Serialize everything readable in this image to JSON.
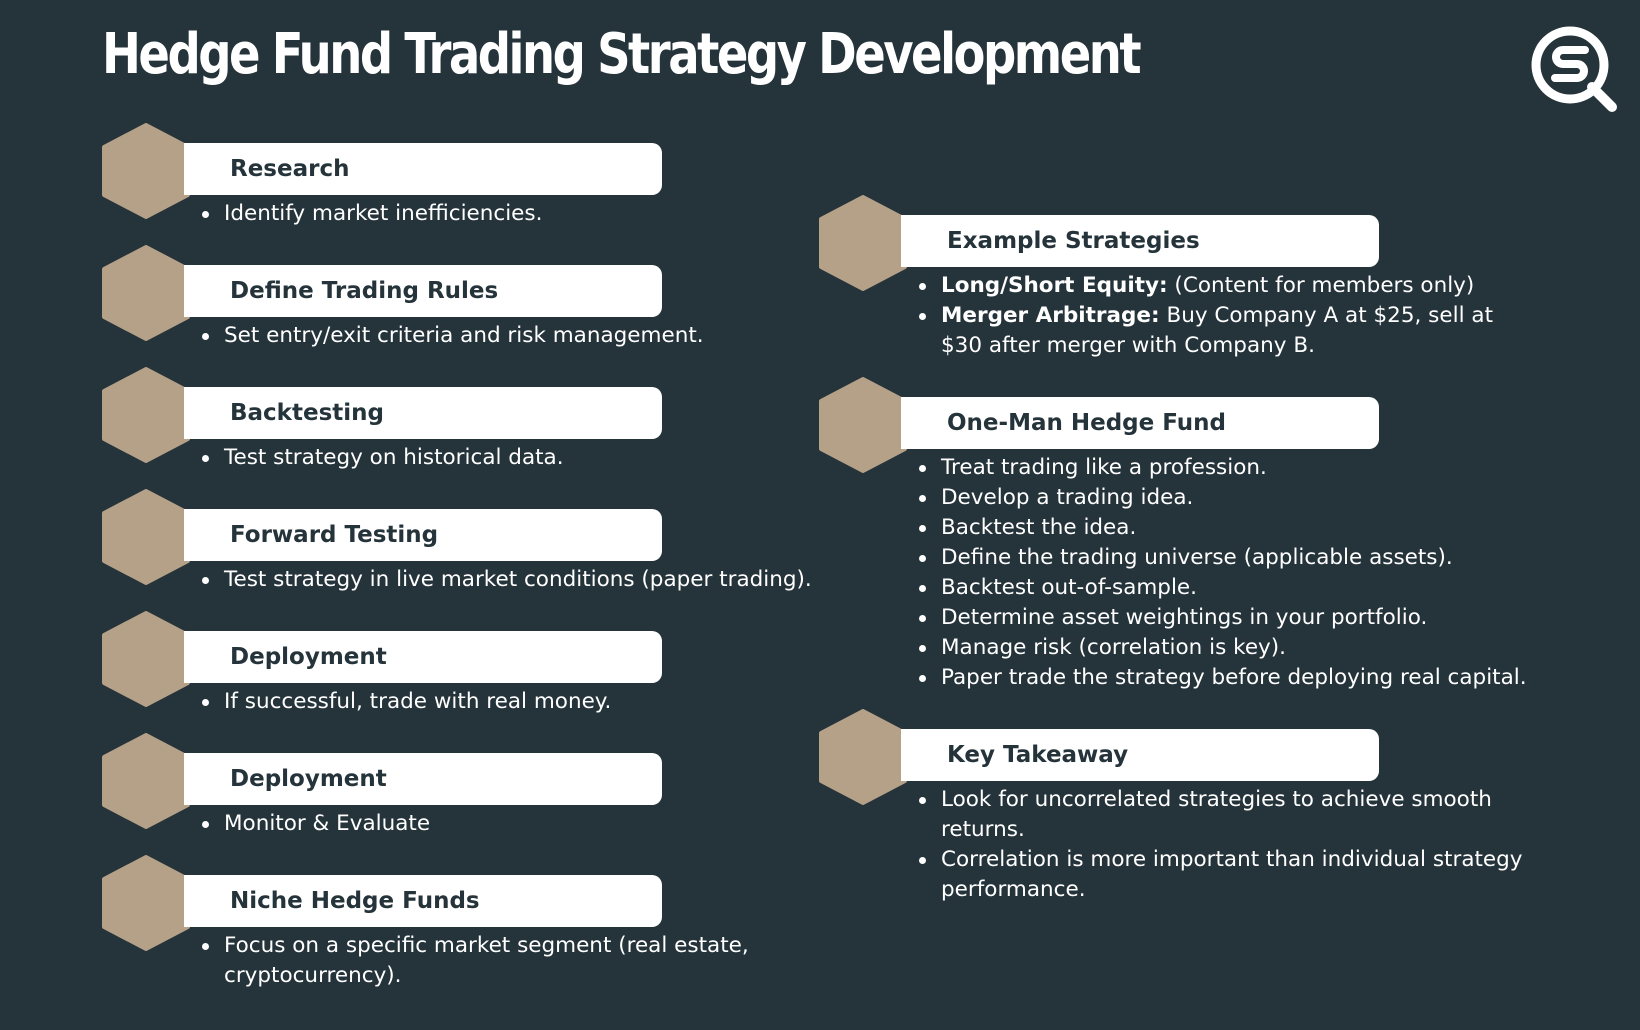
{
  "title": "Hedge Fund Trading Strategy Development",
  "logo": {
    "icon": "q-search-logo-icon",
    "color": "#ffffff"
  },
  "colors": {
    "background": "#25333a",
    "hexagon": "#b5a188",
    "pill": "#ffffff",
    "pill_text": "#25333a"
  },
  "left_sections": [
    {
      "heading": "Research",
      "bullets": [
        "Identify market inefficiencies."
      ]
    },
    {
      "heading": "Define Trading Rules",
      "bullets": [
        "Set entry/exit criteria and risk management."
      ]
    },
    {
      "heading": "Backtesting",
      "bullets": [
        "Test strategy on historical data."
      ]
    },
    {
      "heading": "Forward Testing",
      "bullets": [
        "Test strategy in live market conditions (paper trading)."
      ]
    },
    {
      "heading": "Deployment",
      "bullets": [
        "If successful, trade with real money."
      ]
    },
    {
      "heading": "Deployment",
      "bullets": [
        "Monitor & Evaluate"
      ]
    },
    {
      "heading": "Niche Hedge Funds",
      "bullets": [
        "Focus on a specific market segment (real estate, cryptocurrency)."
      ]
    }
  ],
  "right_sections": [
    {
      "heading": "Example Strategies",
      "items": [
        {
          "lead": "Long/Short Equity:",
          "text": " (Content for members only)"
        },
        {
          "lead": "Merger Arbitrage:",
          "text": " Buy Company A at $25, sell at $30 after merger with Company B."
        }
      ]
    },
    {
      "heading": "One-Man Hedge Fund",
      "items": [
        {
          "lead": "",
          "text": "Treat trading like a profession."
        },
        {
          "lead": "",
          "text": "Develop a trading idea."
        },
        {
          "lead": "",
          "text": "Backtest the idea."
        },
        {
          "lead": "",
          "text": "Define the trading universe (applicable assets)."
        },
        {
          "lead": "",
          "text": "Backtest out-of-sample."
        },
        {
          "lead": "",
          "text": "Determine asset weightings in your portfolio."
        },
        {
          "lead": "",
          "text": "Manage risk (correlation is key)."
        },
        {
          "lead": "",
          "text": "Paper trade the strategy before deploying real capital."
        }
      ]
    },
    {
      "heading": "Key Takeaway",
      "items": [
        {
          "lead": "",
          "text": "Look for uncorrelated strategies to achieve smooth returns."
        },
        {
          "lead": "",
          "text": "Correlation is more important than individual strategy performance."
        }
      ]
    }
  ]
}
